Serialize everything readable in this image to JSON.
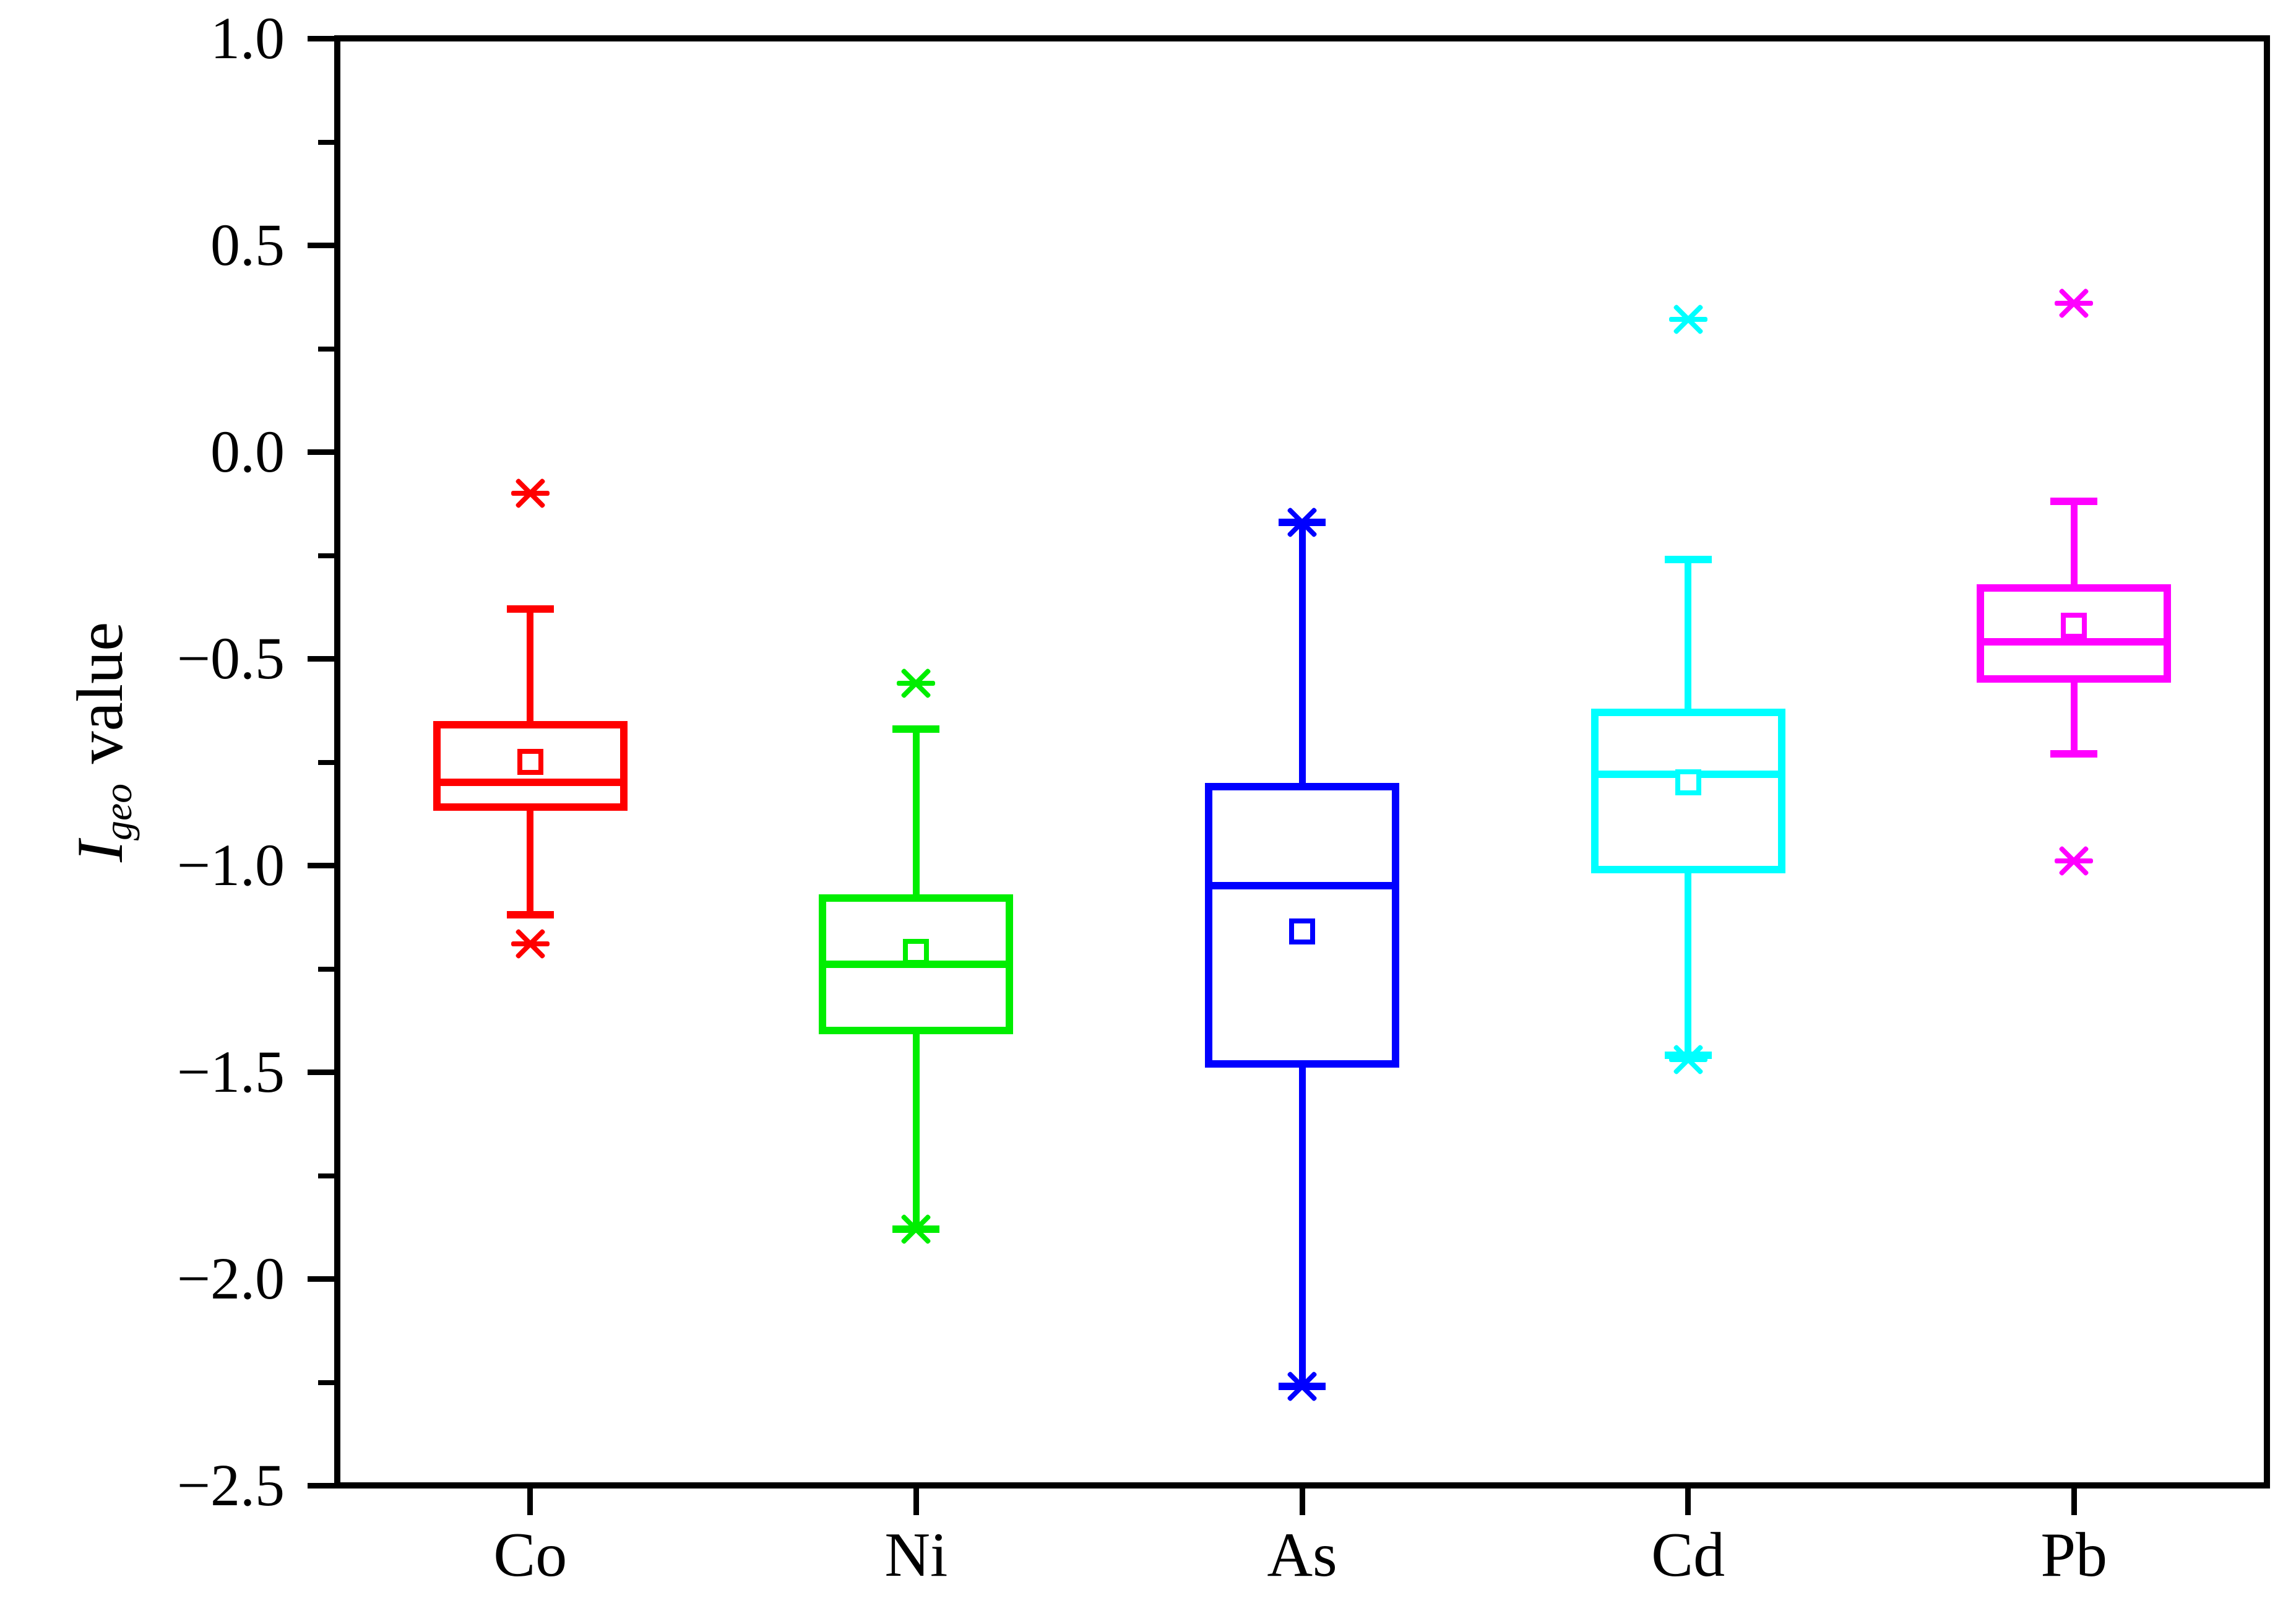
{
  "figure": {
    "background": "#FFFFFF"
  },
  "y_axis": {
    "title": {
      "italic_main": "I",
      "subscript": "geo",
      "rest": " value"
    },
    "tick_labels": [
      "1.0",
      "0.5",
      "0.0",
      "−0.5",
      "−1.0",
      "−1.5",
      "−2.0",
      "−2.5"
    ],
    "major_step": 0.5,
    "minor_step": 0.25,
    "axis_color": "#000000"
  },
  "x_axis": {
    "categories": [
      "Co",
      "Ni",
      "As",
      "Cd",
      "Pb"
    ]
  },
  "chart_data": {
    "type": "box",
    "title": "",
    "xlabel": "",
    "ylabel": "Igeo value",
    "ylim": [
      -2.5,
      1.0
    ],
    "grid": false,
    "legend": false,
    "categories": [
      "Co",
      "Ni",
      "As",
      "Cd",
      "Pb"
    ],
    "series": [
      {
        "name": "Co",
        "color": "#FF0000",
        "whisker_high": -0.38,
        "q3": -0.66,
        "median": -0.8,
        "mean": -0.75,
        "q1": -0.86,
        "whisker_low": -1.12,
        "outliers_high": [
          -0.1
        ],
        "outliers_low": [
          -1.19
        ]
      },
      {
        "name": "Ni",
        "color": "#00EE00",
        "whisker_high": -0.67,
        "q3": -1.08,
        "median": -1.24,
        "mean": -1.21,
        "q1": -1.4,
        "whisker_low": -1.88,
        "outliers_high": [
          -0.56
        ],
        "outliers_low": [
          -1.88
        ]
      },
      {
        "name": "As",
        "color": "#0000FF",
        "whisker_high": -0.17,
        "q3": -0.81,
        "median": -1.05,
        "mean": -1.16,
        "q1": -1.48,
        "whisker_low": -2.26,
        "outliers_high": [
          -0.17
        ],
        "outliers_low": [
          -2.26
        ]
      },
      {
        "name": "Cd",
        "color": "#00FFFF",
        "whisker_high": -0.26,
        "q3": -0.63,
        "median": -0.78,
        "mean": -0.8,
        "q1": -1.01,
        "whisker_low": -1.46,
        "outliers_high": [
          0.32
        ],
        "outliers_low": [
          -1.47
        ]
      },
      {
        "name": "Pb",
        "color": "#FF00FF",
        "whisker_high": -0.12,
        "q3": -0.33,
        "median": -0.46,
        "mean": -0.42,
        "q1": -0.55,
        "whisker_low": -0.73,
        "outliers_high": [
          0.36
        ],
        "outliers_low": [
          -0.99
        ]
      }
    ]
  }
}
